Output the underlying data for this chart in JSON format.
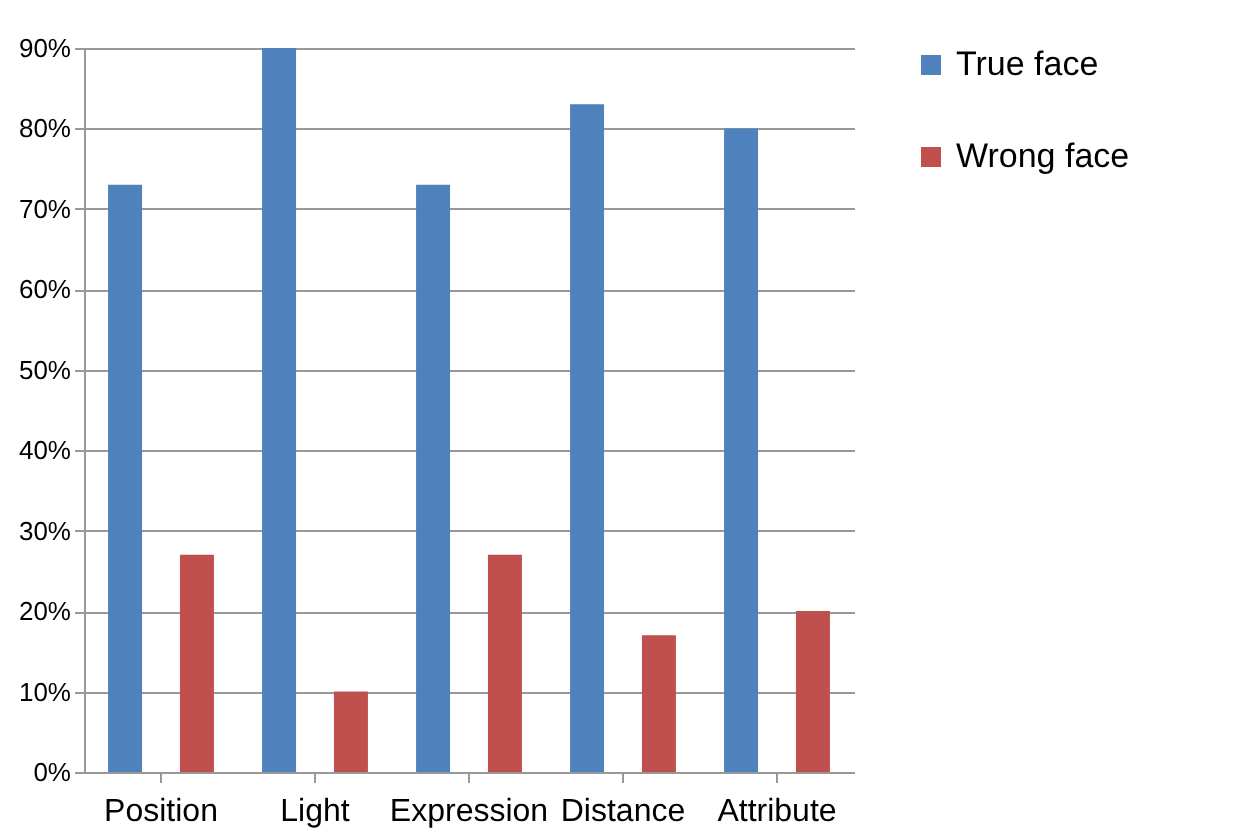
{
  "chart_data": {
    "type": "bar",
    "categories": [
      "Position",
      "Light",
      "Expression",
      "Distance",
      "Attribute"
    ],
    "series": [
      {
        "name": "True face",
        "color": "#4f81bd",
        "values": [
          73,
          90,
          73,
          83,
          80
        ]
      },
      {
        "name": "Wrong face",
        "color": "#c0504d",
        "values": [
          27,
          10,
          27,
          17,
          20
        ]
      }
    ],
    "ylim": [
      0,
      90
    ],
    "yticks": [
      {
        "value": 0,
        "label": "0%"
      },
      {
        "value": 10,
        "label": "10%"
      },
      {
        "value": 20,
        "label": "20%"
      },
      {
        "value": 30,
        "label": "30%"
      },
      {
        "value": 40,
        "label": "40%"
      },
      {
        "value": 50,
        "label": "50%"
      },
      {
        "value": 60,
        "label": "60%"
      },
      {
        "value": 70,
        "label": "70%"
      },
      {
        "value": 80,
        "label": "80%"
      },
      {
        "value": 90,
        "label": "90%"
      }
    ],
    "grid": "y",
    "legend": "right"
  }
}
